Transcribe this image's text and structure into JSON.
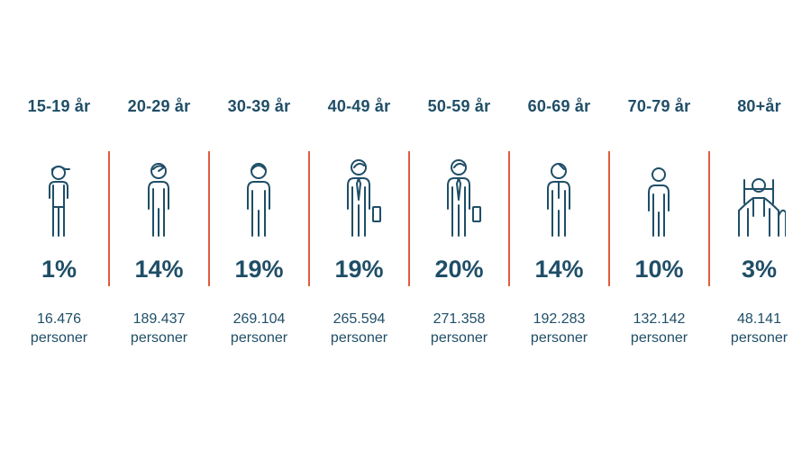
{
  "chart_data": {
    "type": "table",
    "categories": [
      "15-19 år",
      "20-29 år",
      "30-39 år",
      "40-49 år",
      "50-59 år",
      "60-69 år",
      "70-79 år",
      "80+år"
    ],
    "values": [
      1,
      14,
      19,
      19,
      20,
      14,
      10,
      3
    ],
    "counts": [
      16476,
      189437,
      269104,
      265594,
      271358,
      192283,
      132142,
      48141
    ],
    "items": [
      {
        "age": "15-19 år",
        "pct": "1%",
        "count": "16.476",
        "unit": "personer",
        "icon": "young-person-cap-icon"
      },
      {
        "age": "20-29 år",
        "pct": "14%",
        "count": "189.437",
        "unit": "personer",
        "icon": "young-adult-icon"
      },
      {
        "age": "30-39 år",
        "pct": "19%",
        "count": "269.104",
        "unit": "personer",
        "icon": "adult-icon"
      },
      {
        "age": "40-49 år",
        "pct": "19%",
        "count": "265.594",
        "unit": "personer",
        "icon": "businessperson-tie-briefcase-icon"
      },
      {
        "age": "50-59 år",
        "pct": "20%",
        "count": "271.358",
        "unit": "personer",
        "icon": "businessperson-tie-briefcase-icon"
      },
      {
        "age": "60-69 år",
        "pct": "14%",
        "count": "192.283",
        "unit": "personer",
        "icon": "older-adult-icon"
      },
      {
        "age": "70-79 år",
        "pct": "10%",
        "count": "132.142",
        "unit": "personer",
        "icon": "senior-icon"
      },
      {
        "age": "80+år",
        "pct": "3%",
        "count": "48.141",
        "unit": "personer",
        "icon": "elderly-walker-icon"
      }
    ]
  },
  "colors": {
    "text": "#1f4e67",
    "divider": "#e25b3f",
    "background": "#ffffff"
  }
}
